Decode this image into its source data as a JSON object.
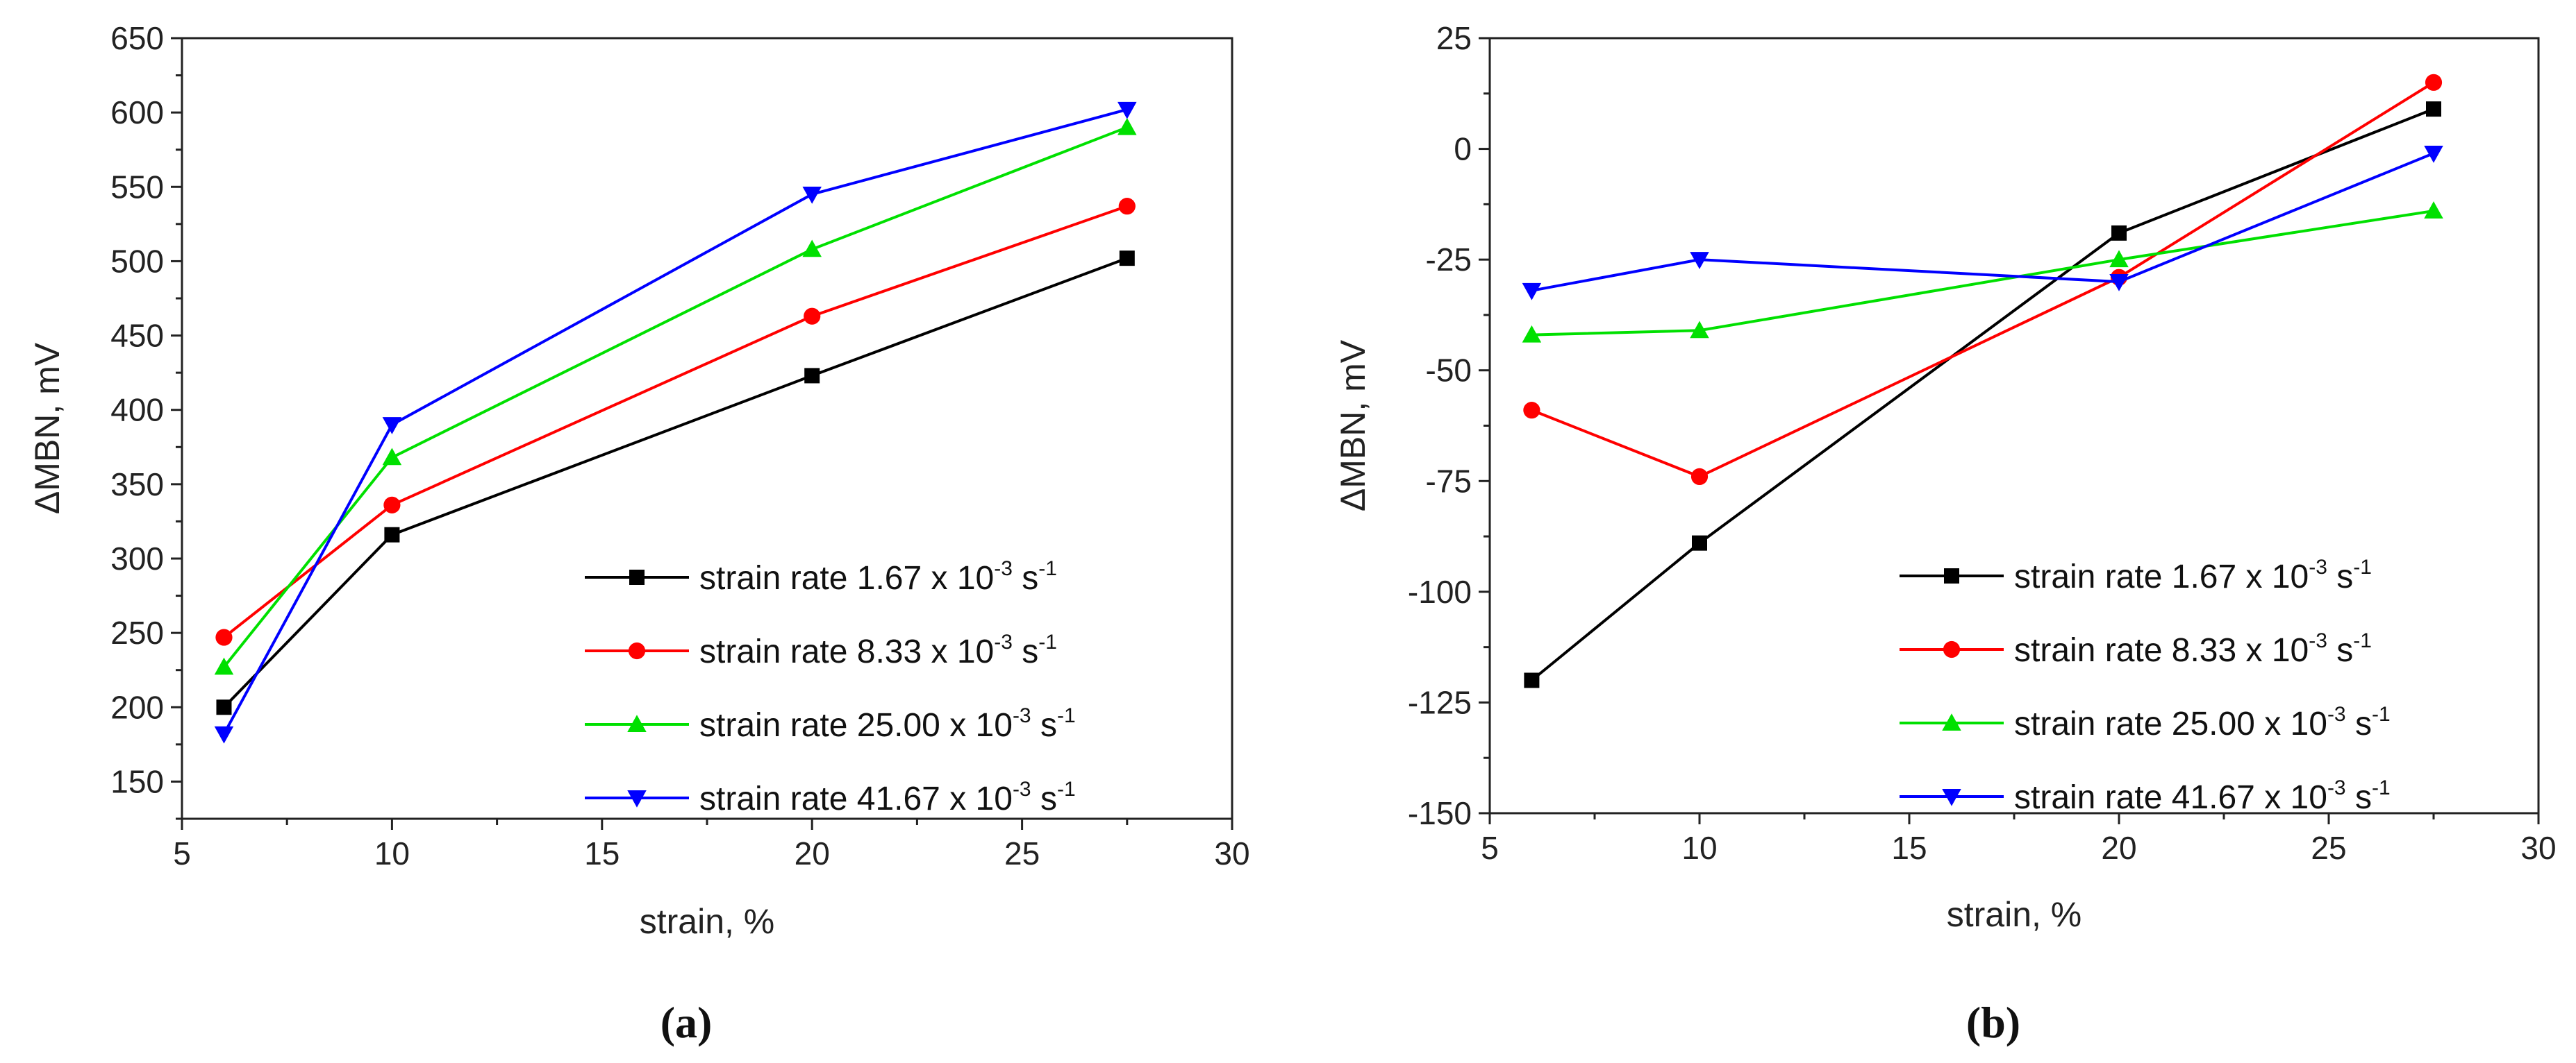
{
  "chart_data": [
    {
      "type": "line",
      "panel_label": "(a)",
      "xlabel": "strain, %",
      "ylabel": "ΔMBN, mV",
      "xlim": [
        5,
        30
      ],
      "ylim": [
        125,
        650
      ],
      "xticks": [
        5,
        10,
        15,
        20,
        25,
        30
      ],
      "yticks": [
        150,
        200,
        250,
        300,
        350,
        400,
        450,
        500,
        550,
        600,
        650
      ],
      "x": [
        6,
        10,
        20,
        27.5
      ],
      "legend_position": "bottom-right",
      "series": [
        {
          "name_prefix": "strain rate 1.67 x 10",
          "exp": "-3",
          "unit": " s",
          "unit_exp": "-1",
          "color": "#000000",
          "marker": "square",
          "values": [
            200,
            316,
            423,
            502
          ]
        },
        {
          "name_prefix": "strain rate 8.33 x 10",
          "exp": "-3",
          "unit": " s",
          "unit_exp": "-1",
          "color": "#ff0000",
          "marker": "circle",
          "values": [
            247,
            336,
            463,
            537
          ]
        },
        {
          "name_prefix": "strain rate 25.00 x 10",
          "exp": "-3",
          "unit": " s",
          "unit_exp": "-1",
          "color": "#00e000",
          "marker": "triangle-up",
          "values": [
            227,
            368,
            508,
            590
          ]
        },
        {
          "name_prefix": "strain rate 41.67 x 10",
          "exp": "-3",
          "unit": " s",
          "unit_exp": "-1",
          "color": "#0000ff",
          "marker": "triangle-down",
          "values": [
            182,
            390,
            545,
            602
          ]
        }
      ]
    },
    {
      "type": "line",
      "panel_label": "(b)",
      "xlabel": "strain, %",
      "ylabel": "ΔMBN, mV",
      "xlim": [
        5,
        30
      ],
      "ylim": [
        -150,
        25
      ],
      "xticks": [
        5,
        10,
        15,
        20,
        25,
        30
      ],
      "yticks": [
        -150,
        -125,
        -100,
        -75,
        -50,
        -25,
        0,
        25
      ],
      "x": [
        6,
        10,
        20,
        27.5
      ],
      "legend_position": "bottom-right",
      "series": [
        {
          "name_prefix": "strain rate 1.67 x 10",
          "exp": "-3",
          "unit": " s",
          "unit_exp": "-1",
          "color": "#000000",
          "marker": "square",
          "values": [
            -120,
            -89,
            -19,
            9
          ]
        },
        {
          "name_prefix": "strain rate 8.33 x 10",
          "exp": "-3",
          "unit": " s",
          "unit_exp": "-1",
          "color": "#ff0000",
          "marker": "circle",
          "values": [
            -59,
            -74,
            -29,
            15
          ]
        },
        {
          "name_prefix": "strain rate 25.00 x 10",
          "exp": "-3",
          "unit": " s",
          "unit_exp": "-1",
          "color": "#00e000",
          "marker": "triangle-up",
          "values": [
            -42,
            -41,
            -25,
            -14
          ]
        },
        {
          "name_prefix": "strain rate 41.67 x 10",
          "exp": "-3",
          "unit": " s",
          "unit_exp": "-1",
          "color": "#0000ff",
          "marker": "triangle-down",
          "values": [
            -32,
            -25,
            -30,
            -1
          ]
        }
      ]
    }
  ]
}
